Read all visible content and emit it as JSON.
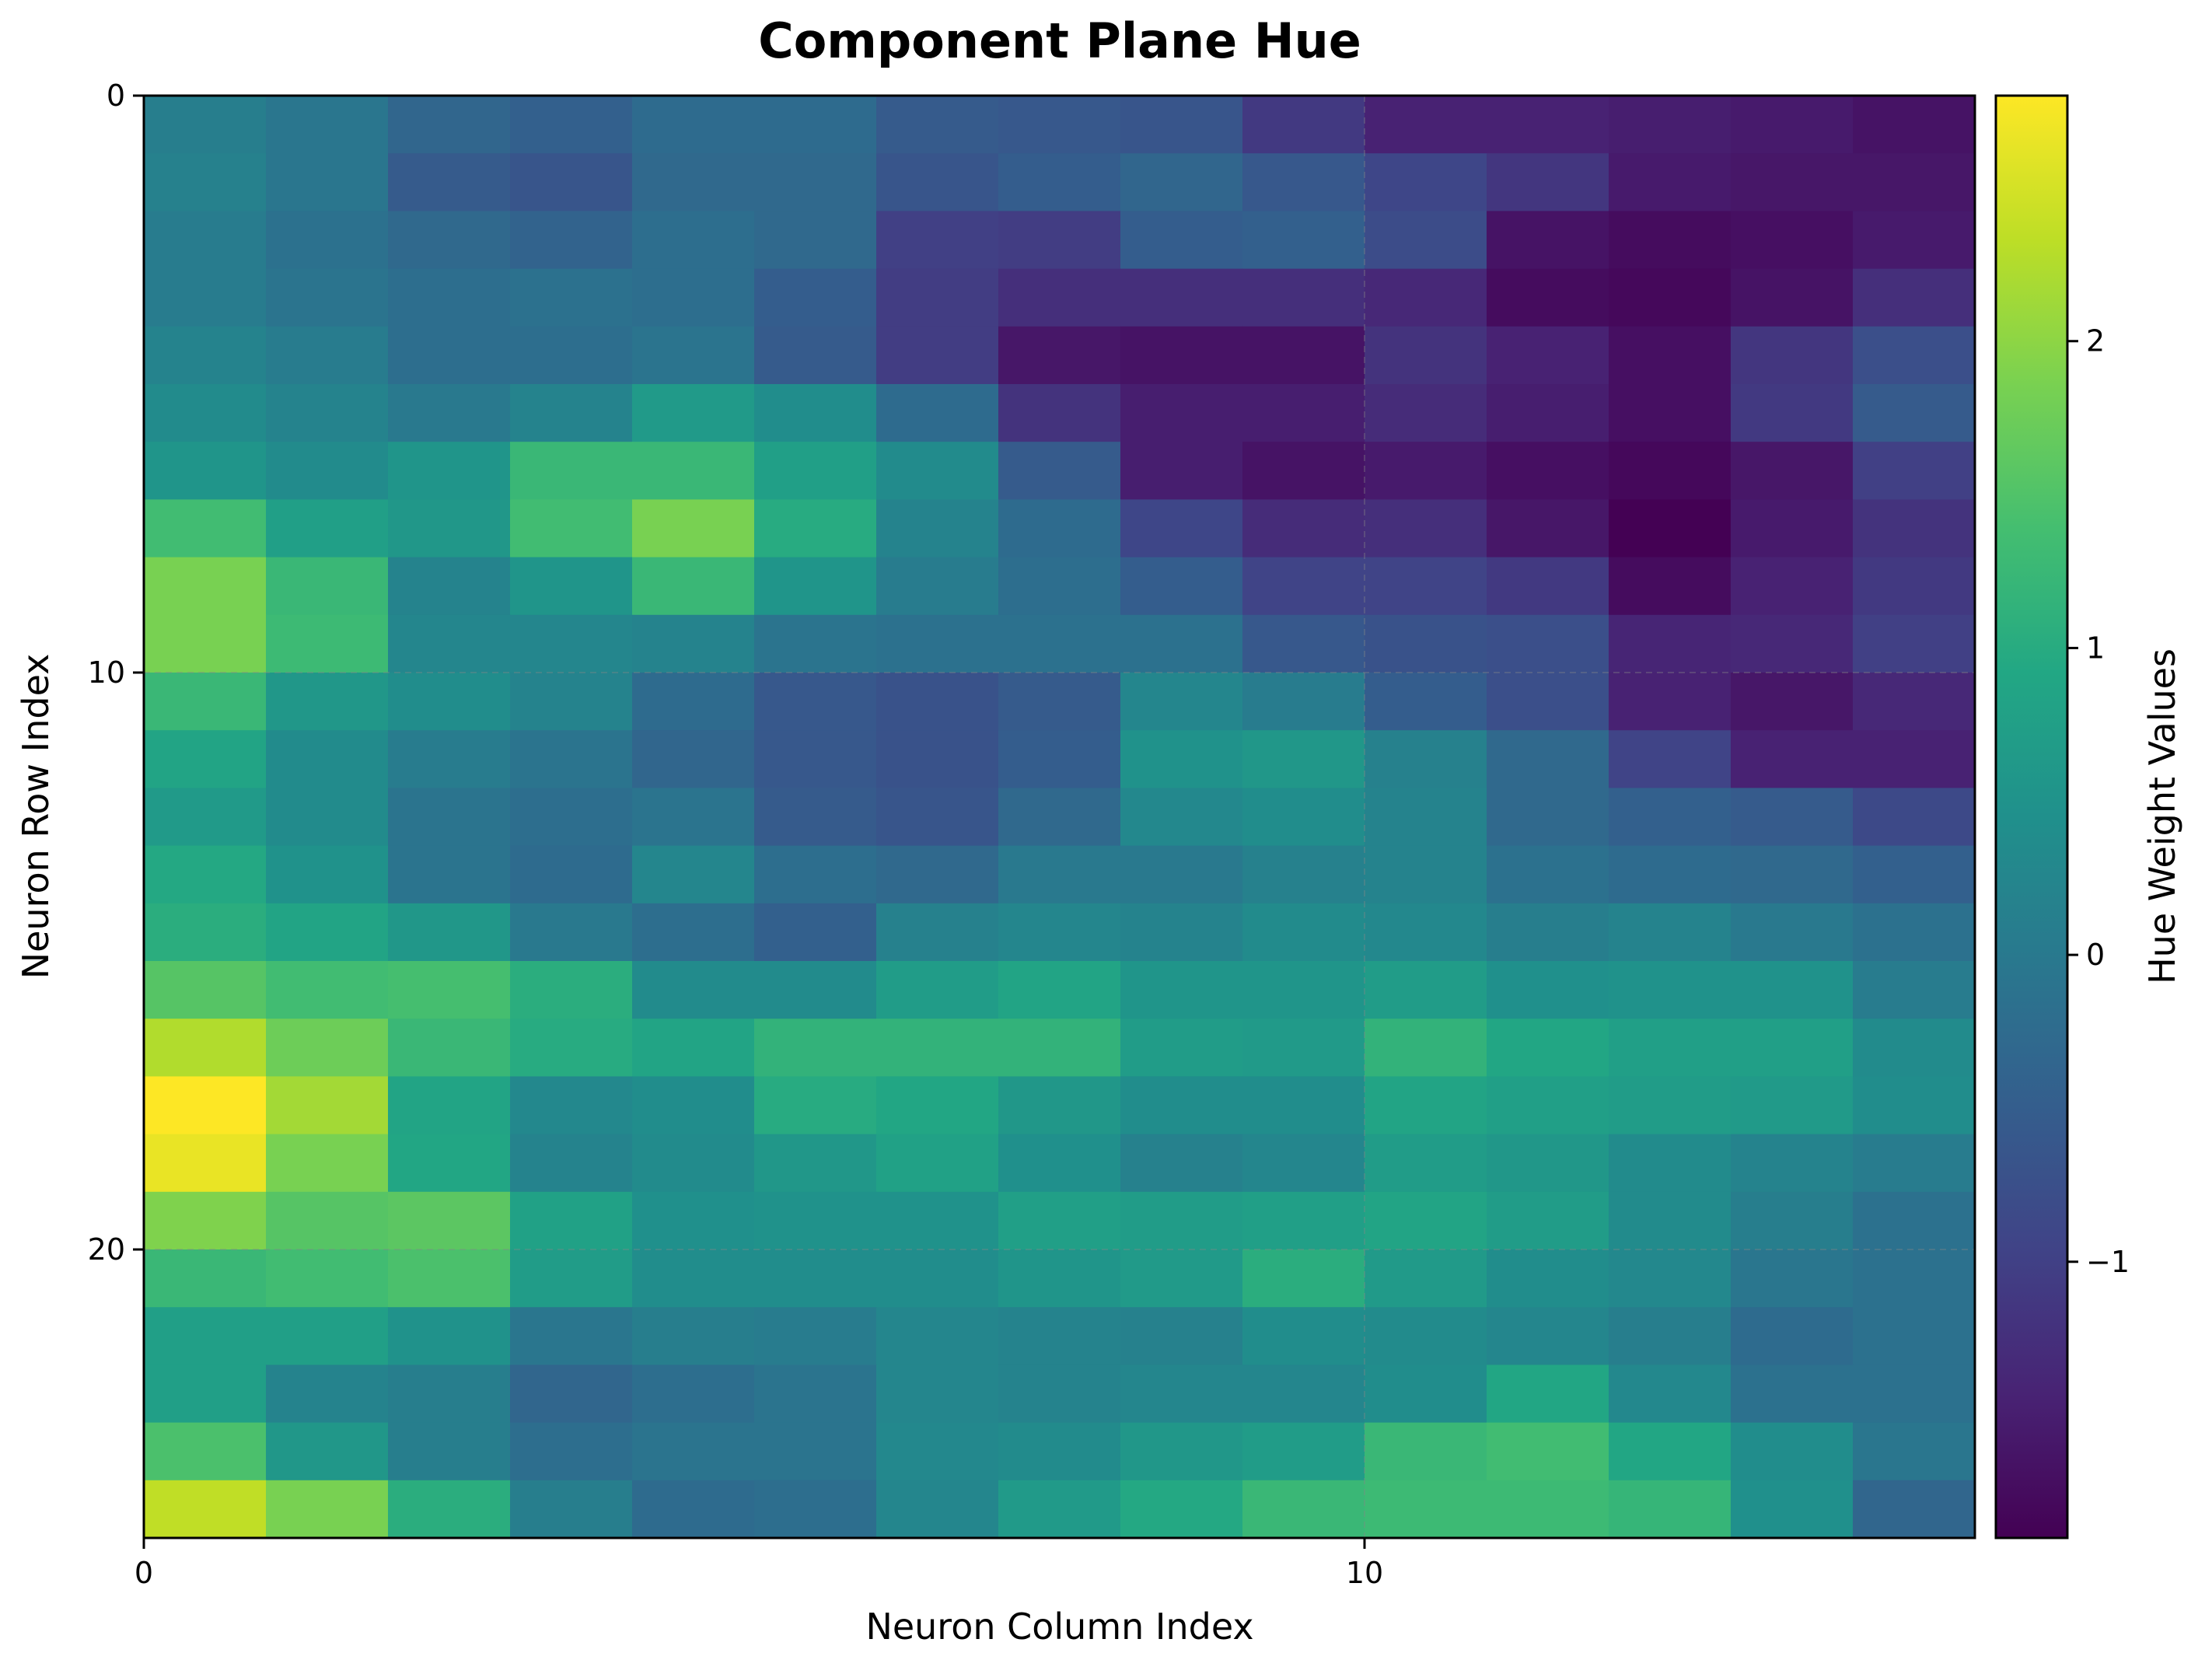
{
  "chart_data": {
    "type": "heatmap",
    "title": "Component Plane Hue",
    "xlabel": "Neuron Column Index",
    "ylabel": "Neuron Row Index",
    "colorbar_label": "Hue Weight Values",
    "colormap": "viridis",
    "grid": true,
    "n_rows": 25,
    "n_cols": 15,
    "x_ticks": [
      0,
      10
    ],
    "y_ticks": [
      0,
      10,
      20
    ],
    "colorbar_ticks": [
      2,
      1,
      0,
      -1
    ],
    "colorbar_tick_labels": [
      "2",
      "1",
      "0",
      "−1"
    ],
    "vmin": -1.9,
    "vmax": 2.8,
    "values": [
      [
        0.1,
        -0.05,
        -0.35,
        -0.45,
        -0.25,
        -0.25,
        -0.55,
        -0.6,
        -0.65,
        -1.1,
        -1.45,
        -1.45,
        -1.5,
        -1.55,
        -1.65
      ],
      [
        0.15,
        -0.05,
        -0.55,
        -0.65,
        -0.3,
        -0.3,
        -0.65,
        -0.5,
        -0.35,
        -0.6,
        -0.9,
        -1.15,
        -1.55,
        -1.6,
        -1.6
      ],
      [
        0.05,
        -0.15,
        -0.3,
        -0.4,
        -0.2,
        -0.3,
        -1.0,
        -1.05,
        -0.5,
        -0.45,
        -0.8,
        -1.65,
        -1.75,
        -1.7,
        -1.55
      ],
      [
        0.05,
        -0.1,
        -0.2,
        -0.15,
        -0.2,
        -0.5,
        -1.05,
        -1.25,
        -1.25,
        -1.25,
        -1.35,
        -1.75,
        -1.8,
        -1.65,
        -1.25
      ],
      [
        0.2,
        0.05,
        -0.2,
        -0.2,
        -0.1,
        -0.55,
        -1.05,
        -1.6,
        -1.65,
        -1.65,
        -1.2,
        -1.45,
        -1.7,
        -1.15,
        -0.75
      ],
      [
        0.35,
        0.2,
        0.0,
        0.2,
        0.65,
        0.4,
        -0.25,
        -1.2,
        -1.5,
        -1.5,
        -1.3,
        -1.5,
        -1.7,
        -1.1,
        -0.55
      ],
      [
        0.55,
        0.35,
        0.55,
        1.25,
        1.25,
        0.75,
        0.35,
        -0.55,
        -1.5,
        -1.65,
        -1.55,
        -1.7,
        -1.8,
        -1.6,
        -1.0
      ],
      [
        1.35,
        0.75,
        0.6,
        1.35,
        1.85,
        1.0,
        0.2,
        -0.25,
        -0.9,
        -1.3,
        -1.25,
        -1.6,
        -1.9,
        -1.55,
        -1.2
      ],
      [
        1.85,
        1.25,
        0.2,
        0.55,
        1.25,
        0.55,
        0.05,
        -0.2,
        -0.5,
        -0.95,
        -0.95,
        -1.1,
        -1.75,
        -1.45,
        -1.1
      ],
      [
        1.85,
        1.3,
        0.25,
        0.25,
        0.2,
        -0.1,
        -0.15,
        -0.15,
        -0.15,
        -0.6,
        -0.7,
        -0.75,
        -1.4,
        -1.35,
        -1.0
      ],
      [
        1.25,
        0.6,
        0.4,
        0.2,
        -0.25,
        -0.6,
        -0.7,
        -0.55,
        0.25,
        0.05,
        -0.5,
        -0.75,
        -1.45,
        -1.6,
        -1.35
      ],
      [
        0.85,
        0.35,
        0.05,
        -0.1,
        -0.35,
        -0.6,
        -0.7,
        -0.5,
        0.5,
        0.6,
        0.15,
        -0.3,
        -0.95,
        -1.45,
        -1.45
      ],
      [
        0.65,
        0.35,
        -0.1,
        -0.2,
        -0.1,
        -0.55,
        -0.65,
        -0.3,
        0.3,
        0.4,
        0.2,
        -0.3,
        -0.45,
        -0.55,
        -0.85
      ],
      [
        0.95,
        0.5,
        -0.1,
        -0.25,
        0.25,
        -0.2,
        -0.3,
        0.0,
        0.0,
        0.15,
        0.2,
        -0.15,
        -0.25,
        -0.3,
        -0.45
      ],
      [
        1.05,
        0.85,
        0.6,
        0.0,
        -0.2,
        -0.45,
        0.15,
        0.25,
        0.2,
        0.35,
        0.3,
        0.1,
        0.2,
        0.0,
        -0.15
      ],
      [
        1.55,
        1.35,
        1.4,
        1.05,
        0.35,
        0.35,
        0.7,
        0.85,
        0.55,
        0.55,
        0.7,
        0.45,
        0.5,
        0.5,
        0.05
      ],
      [
        2.25,
        1.75,
        1.25,
        1.0,
        0.85,
        1.15,
        1.15,
        1.15,
        0.7,
        0.65,
        1.15,
        0.9,
        0.75,
        0.75,
        0.35
      ],
      [
        2.8,
        2.15,
        0.85,
        0.3,
        0.4,
        1.0,
        0.9,
        0.6,
        0.4,
        0.4,
        0.85,
        0.75,
        0.7,
        0.65,
        0.4
      ],
      [
        2.65,
        1.85,
        0.9,
        0.2,
        0.35,
        0.6,
        0.8,
        0.45,
        0.15,
        0.25,
        0.7,
        0.6,
        0.35,
        0.2,
        0.05
      ],
      [
        1.9,
        1.55,
        1.6,
        0.8,
        0.45,
        0.5,
        0.5,
        0.75,
        0.7,
        0.75,
        0.85,
        0.7,
        0.35,
        0.1,
        -0.15
      ],
      [
        1.25,
        1.35,
        1.45,
        0.7,
        0.4,
        0.4,
        0.4,
        0.55,
        0.65,
        1.05,
        0.65,
        0.4,
        0.3,
        -0.05,
        -0.15
      ],
      [
        0.75,
        0.75,
        0.5,
        -0.05,
        0.1,
        0.05,
        0.25,
        0.2,
        0.15,
        0.4,
        0.35,
        0.25,
        0.1,
        -0.25,
        -0.15
      ],
      [
        0.75,
        0.2,
        0.1,
        -0.35,
        -0.2,
        -0.1,
        0.25,
        0.2,
        0.25,
        0.25,
        0.4,
        0.9,
        0.3,
        -0.15,
        -0.15
      ],
      [
        1.45,
        0.6,
        0.1,
        -0.2,
        -0.1,
        -0.1,
        0.3,
        0.35,
        0.6,
        0.7,
        1.25,
        1.35,
        0.9,
        0.4,
        -0.05
      ],
      [
        2.35,
        1.85,
        1.05,
        0.1,
        -0.25,
        -0.2,
        0.25,
        0.65,
        0.95,
        1.25,
        1.3,
        1.3,
        1.2,
        0.45,
        -0.35
      ]
    ]
  }
}
